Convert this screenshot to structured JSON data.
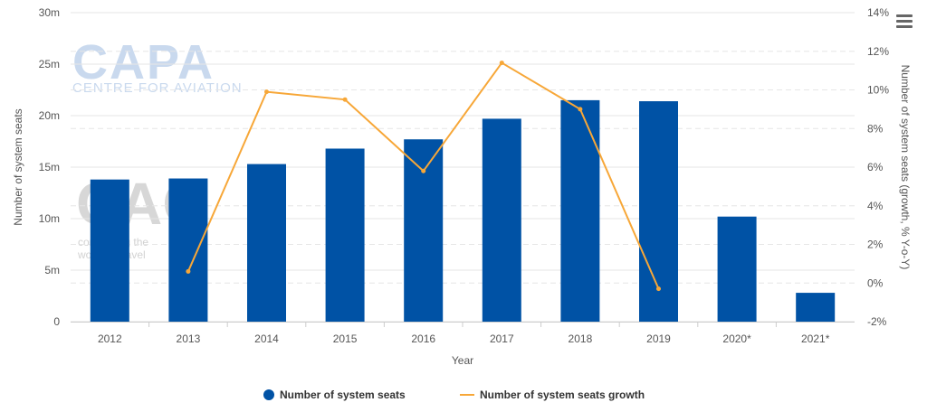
{
  "watermark": {
    "logo_text": "CAPA",
    "logo_sub": "CENTRE FOR AVIATION",
    "mark_text": "CAG",
    "mark_sub1": "connecting the",
    "mark_sub2": "world of travel"
  },
  "chart_data": {
    "type": "bar",
    "title": "",
    "xlabel": "Year",
    "ylabel": "Number of system seats",
    "y2label": "Number of system seats (growth, % Y-o-Y)",
    "categories": [
      "2012",
      "2013",
      "2014",
      "2015",
      "2016",
      "2017",
      "2018",
      "2019",
      "2020*",
      "2021*"
    ],
    "y_ticks": [
      "0",
      "5m",
      "10m",
      "15m",
      "20m",
      "25m",
      "30m"
    ],
    "y_range": [
      0,
      30
    ],
    "y2_ticks": [
      "-2%",
      "0%",
      "2%",
      "4%",
      "6%",
      "8%",
      "10%",
      "12%",
      "14%"
    ],
    "y2_range": [
      -2,
      14
    ],
    "grid": true,
    "legend_position": "bottom-center",
    "series": [
      {
        "name": "Number of system seats",
        "type": "bar",
        "axis": "left",
        "unit": "m",
        "color": "#0052a5",
        "values": [
          13.8,
          13.9,
          15.3,
          16.8,
          17.7,
          19.7,
          21.5,
          21.4,
          10.2,
          2.8
        ]
      },
      {
        "name": "Number of system seats growth",
        "type": "line",
        "axis": "right",
        "unit": "%",
        "color": "#f7a738",
        "values": [
          null,
          0.6,
          9.9,
          9.5,
          5.8,
          11.4,
          9.0,
          -0.3,
          null,
          null
        ]
      }
    ]
  }
}
